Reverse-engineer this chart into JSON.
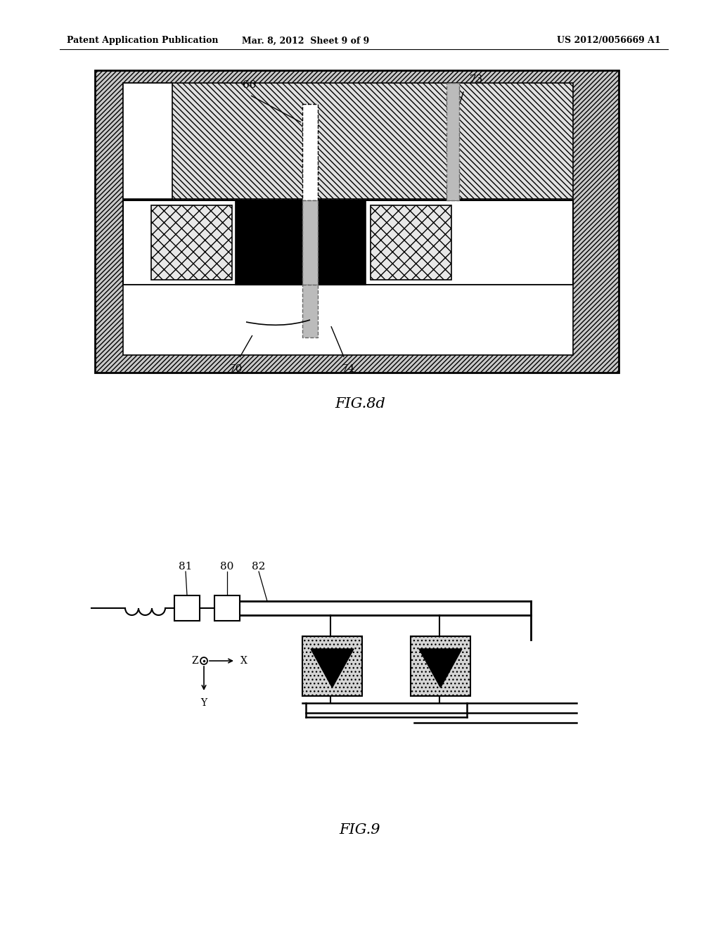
{
  "header_left": "Patent Application Publication",
  "header_mid": "Mar. 8, 2012  Sheet 9 of 9",
  "header_right": "US 2012/0056669 A1",
  "fig8d_label": "FIG.8d",
  "fig9_label": "FIG.9",
  "label_60": "60",
  "label_70": "70",
  "label_73": "73",
  "label_74": "74",
  "label_80": "80",
  "label_81": "81",
  "label_82": "82",
  "bg_color": "#ffffff",
  "line_color": "#000000"
}
